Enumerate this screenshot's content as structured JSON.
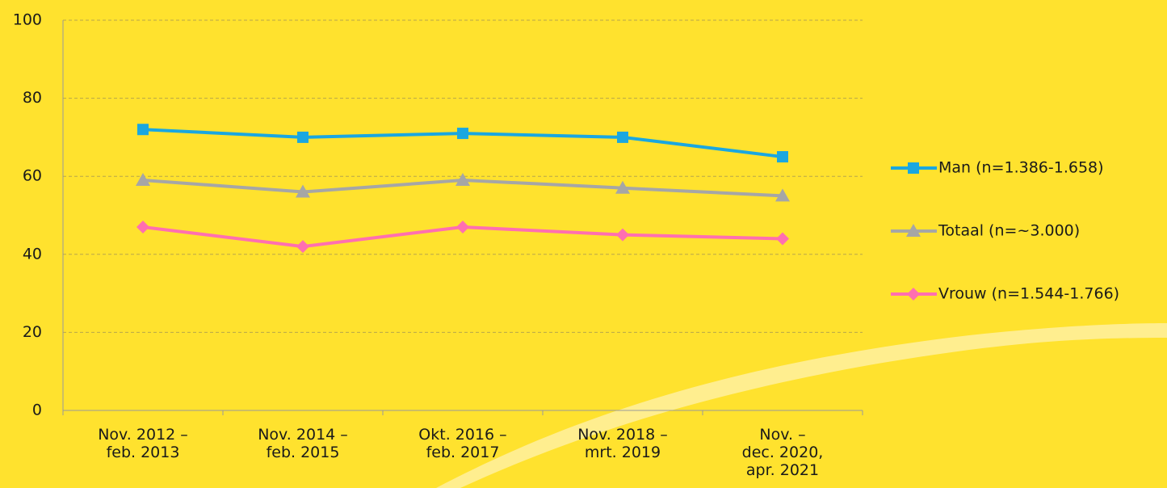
{
  "chart_data": {
    "type": "line",
    "categories": [
      "Nov. 2012 –\nfeb. 2013",
      "Nov. 2014 –\nfeb. 2015",
      "Okt. 2016 –\nfeb. 2017",
      "Nov. 2018 –\nmrt. 2019",
      "Nov. –\ndec. 2020,\napr. 2021"
    ],
    "series": [
      {
        "name": "Man (n=1.386-1.658)",
        "color": "#1aa7e0",
        "marker": "square",
        "values": [
          72,
          70,
          71,
          70,
          65
        ]
      },
      {
        "name": "Totaal (n=~3.000)",
        "color": "#a6a6a6",
        "marker": "triangle",
        "values": [
          59,
          56,
          59,
          57,
          55
        ]
      },
      {
        "name": "Vrouw (n=1.544-1.766)",
        "color": "#ff6fb0",
        "marker": "diamond",
        "values": [
          47,
          42,
          47,
          45,
          44
        ]
      }
    ],
    "ylim": [
      0,
      100
    ],
    "yticks": [
      0,
      20,
      40,
      60,
      80,
      100
    ],
    "grid": true,
    "legend": "right"
  }
}
